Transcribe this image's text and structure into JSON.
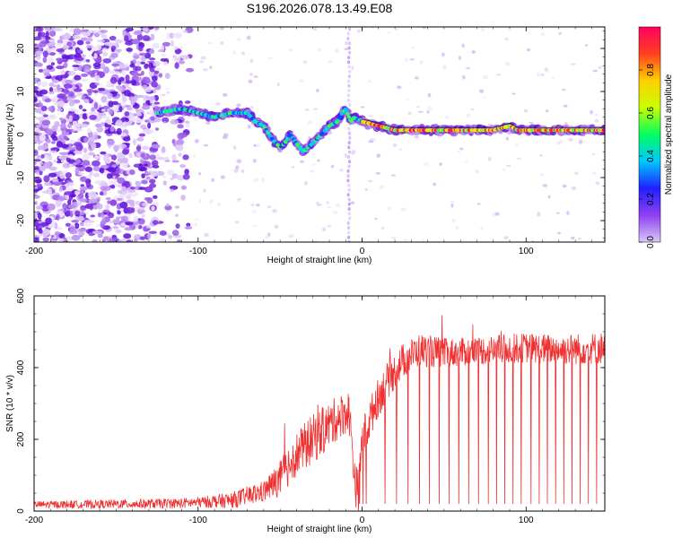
{
  "title": "S196.2026.078.13.49.E08",
  "chart_data": [
    {
      "type": "heatmap",
      "name": "spectrogram",
      "xlabel": "Height of straight line (km)",
      "ylabel": "Frequency (Hz)",
      "xlim": [
        -200,
        148
      ],
      "ylim": [
        -25,
        25
      ],
      "x_ticks": [
        -200,
        -100,
        0,
        100
      ],
      "x_tick_labels": [
        "-200",
        "-100",
        "0",
        "100"
      ],
      "y_ticks": [
        20,
        10,
        0,
        -10,
        -20
      ],
      "y_tick_labels": [
        "20",
        "10",
        "0",
        "-10",
        "-20"
      ],
      "colorbar": {
        "label": "Normalized spectral amplitude",
        "range": [
          0,
          1
        ],
        "ticks": [
          0.0,
          0.2,
          0.4,
          0.6,
          0.8
        ],
        "tick_labels": [
          "0.0",
          "0.2",
          "0.4",
          "0.6",
          "0.8"
        ],
        "colors": [
          "#d8c8f8",
          "#9040f0",
          "#2020ff",
          "#00c8ff",
          "#00ff60",
          "#c8ff00",
          "#ffd000",
          "#ff4020",
          "#ff0060"
        ]
      },
      "ridge": {
        "x": [
          -125,
          -110,
          -100,
          -90,
          -80,
          -70,
          -65,
          -60,
          -55,
          -50,
          -47,
          -44,
          -40,
          -36,
          -30,
          -25,
          -20,
          -15,
          -12,
          -10,
          -7,
          -5,
          0,
          10,
          20,
          40,
          60,
          80,
          90,
          95,
          100,
          120,
          148
        ],
        "y": [
          5,
          6,
          5,
          4,
          5,
          5,
          3,
          2,
          -1,
          -3,
          -2,
          0,
          -2,
          -4,
          -2,
          0,
          2,
          3,
          5,
          6,
          3,
          4,
          3,
          2,
          1,
          1,
          1,
          1,
          2,
          1,
          1,
          1,
          1
        ]
      },
      "noise_region_x": [
        -200,
        -125
      ],
      "spike_x": -8
    },
    {
      "type": "line",
      "name": "snr",
      "xlabel": "Height of straight line (km)",
      "ylabel": "SNR (10 * v/v)",
      "xlim": [
        -200,
        148
      ],
      "ylim": [
        0,
        600
      ],
      "x_ticks": [
        -200,
        -100,
        0,
        100
      ],
      "x_tick_labels": [
        "-200",
        "-100",
        "0",
        "100"
      ],
      "y_ticks": [
        0,
        200,
        400,
        600
      ],
      "y_tick_labels": [
        "0",
        "200",
        "400",
        "600"
      ],
      "color": "#f03030",
      "envelope": {
        "x": [
          -200,
          -140,
          -110,
          -80,
          -60,
          -50,
          -42,
          -35,
          -25,
          -15,
          -8,
          -4,
          -2,
          0,
          3,
          8,
          15,
          25,
          35,
          50,
          80,
          100,
          120,
          148
        ],
        "y": [
          18,
          20,
          22,
          30,
          55,
          90,
          150,
          180,
          220,
          260,
          280,
          70,
          60,
          200,
          230,
          300,
          360,
          420,
          450,
          440,
          450,
          455,
          450,
          455
        ]
      },
      "noise_amplitude": {
        "x": [
          -200,
          -100,
          -60,
          -45,
          -30,
          -10,
          0,
          20,
          60,
          148
        ],
        "y": [
          10,
          15,
          30,
          60,
          70,
          60,
          60,
          50,
          40,
          45
        ]
      },
      "dropouts_x": [
        -1.5,
        0.5,
        2.5,
        14,
        21,
        28,
        35,
        41,
        47,
        53,
        59,
        65,
        71,
        77,
        82,
        87,
        92,
        97,
        103,
        108,
        113,
        118,
        123,
        128,
        133,
        138,
        143
      ],
      "dropout_level": 20
    }
  ]
}
